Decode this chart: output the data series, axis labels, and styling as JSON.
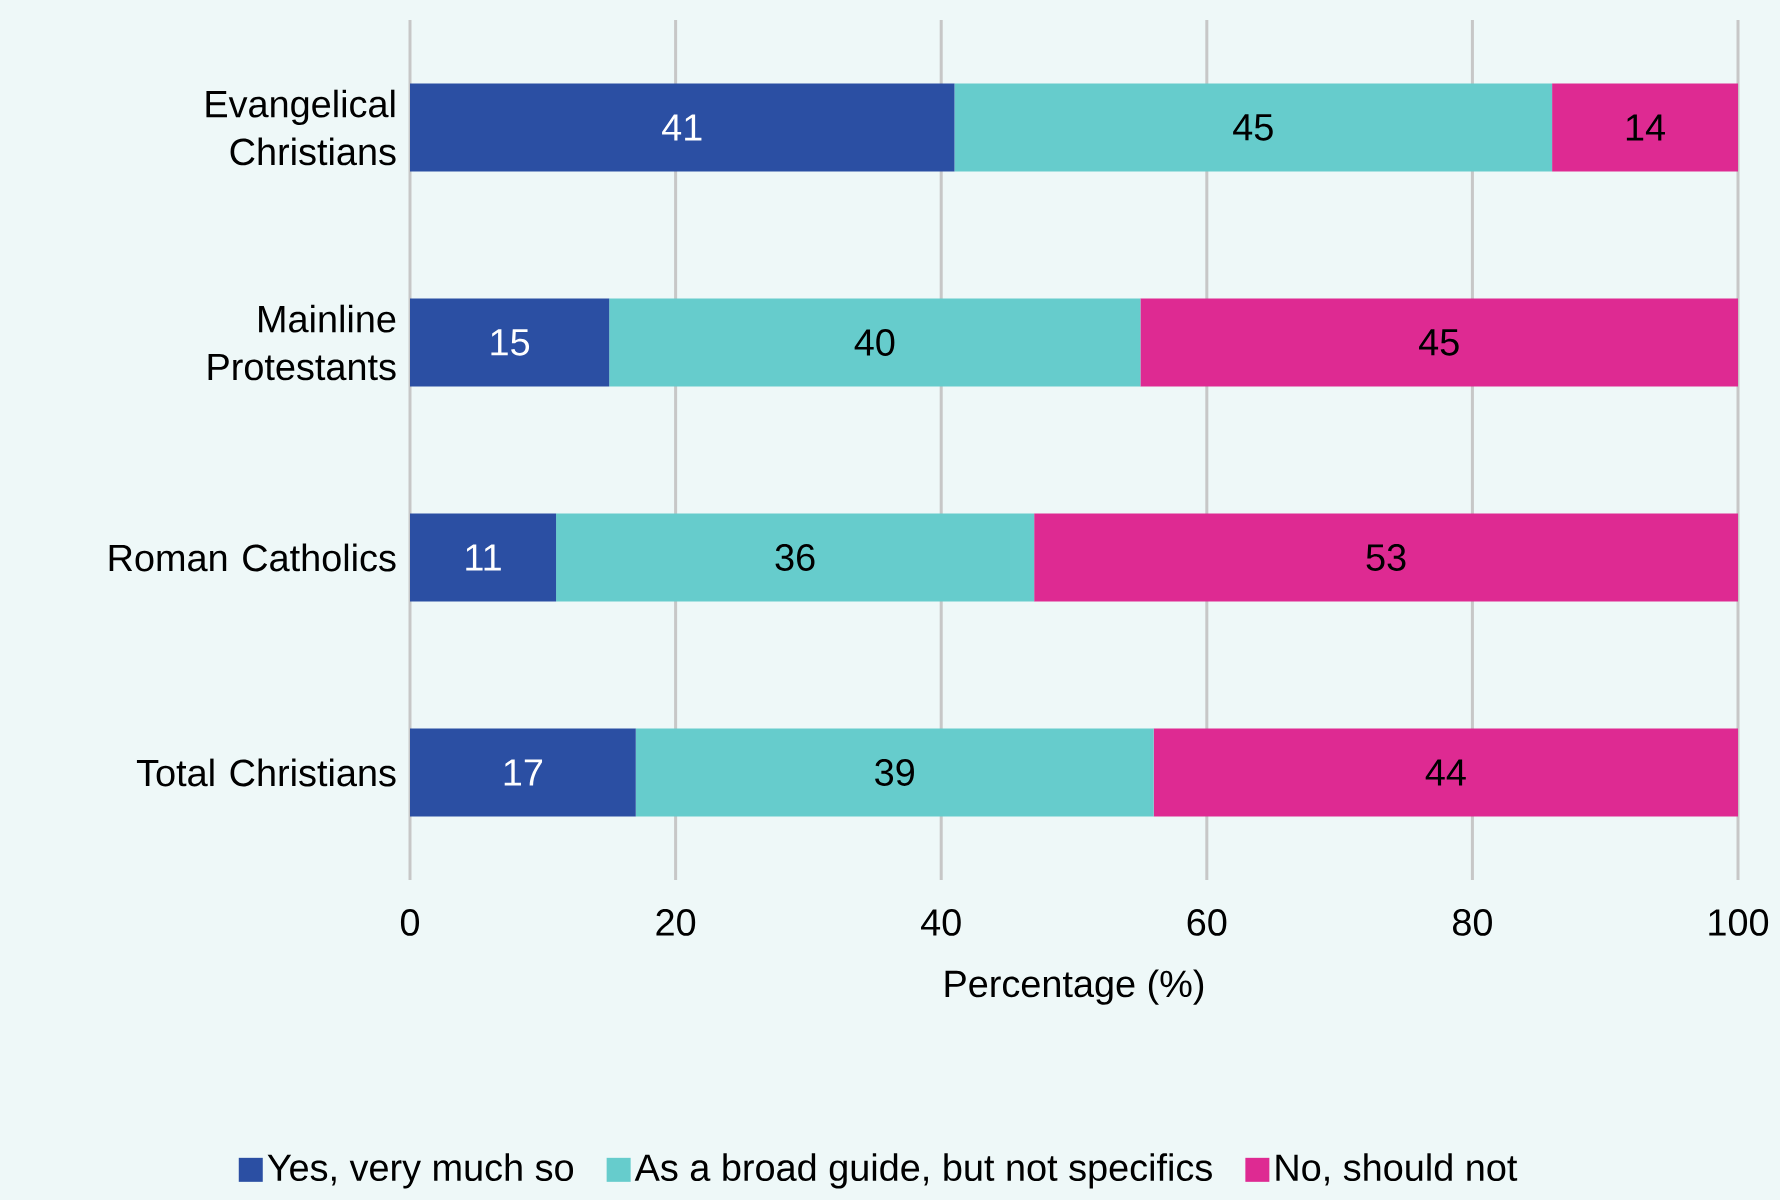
{
  "chart_data": {
    "type": "bar",
    "orientation": "horizontal",
    "stacked": true,
    "xlabel": "Percentage (%)",
    "categories": [
      "Evangelical Christians",
      "Mainline Protestants",
      "Roman Catholics",
      "Total Christians"
    ],
    "series": [
      {
        "name": "Yes, very much so",
        "color": "#2b4fa3",
        "values": [
          41,
          15,
          11,
          17
        ]
      },
      {
        "name": "As a broad guide, but not specifics",
        "color": "#66cccc",
        "values": [
          45,
          40,
          36,
          39
        ]
      },
      {
        "name": "No, should not",
        "color": "#de2a92",
        "values": [
          14,
          45,
          53,
          44
        ]
      }
    ],
    "xlim": [
      0,
      100
    ],
    "xticks": [
      0,
      20,
      40,
      60,
      80,
      100
    ],
    "grid": "x",
    "legend": "bottom",
    "data_labels": true
  }
}
